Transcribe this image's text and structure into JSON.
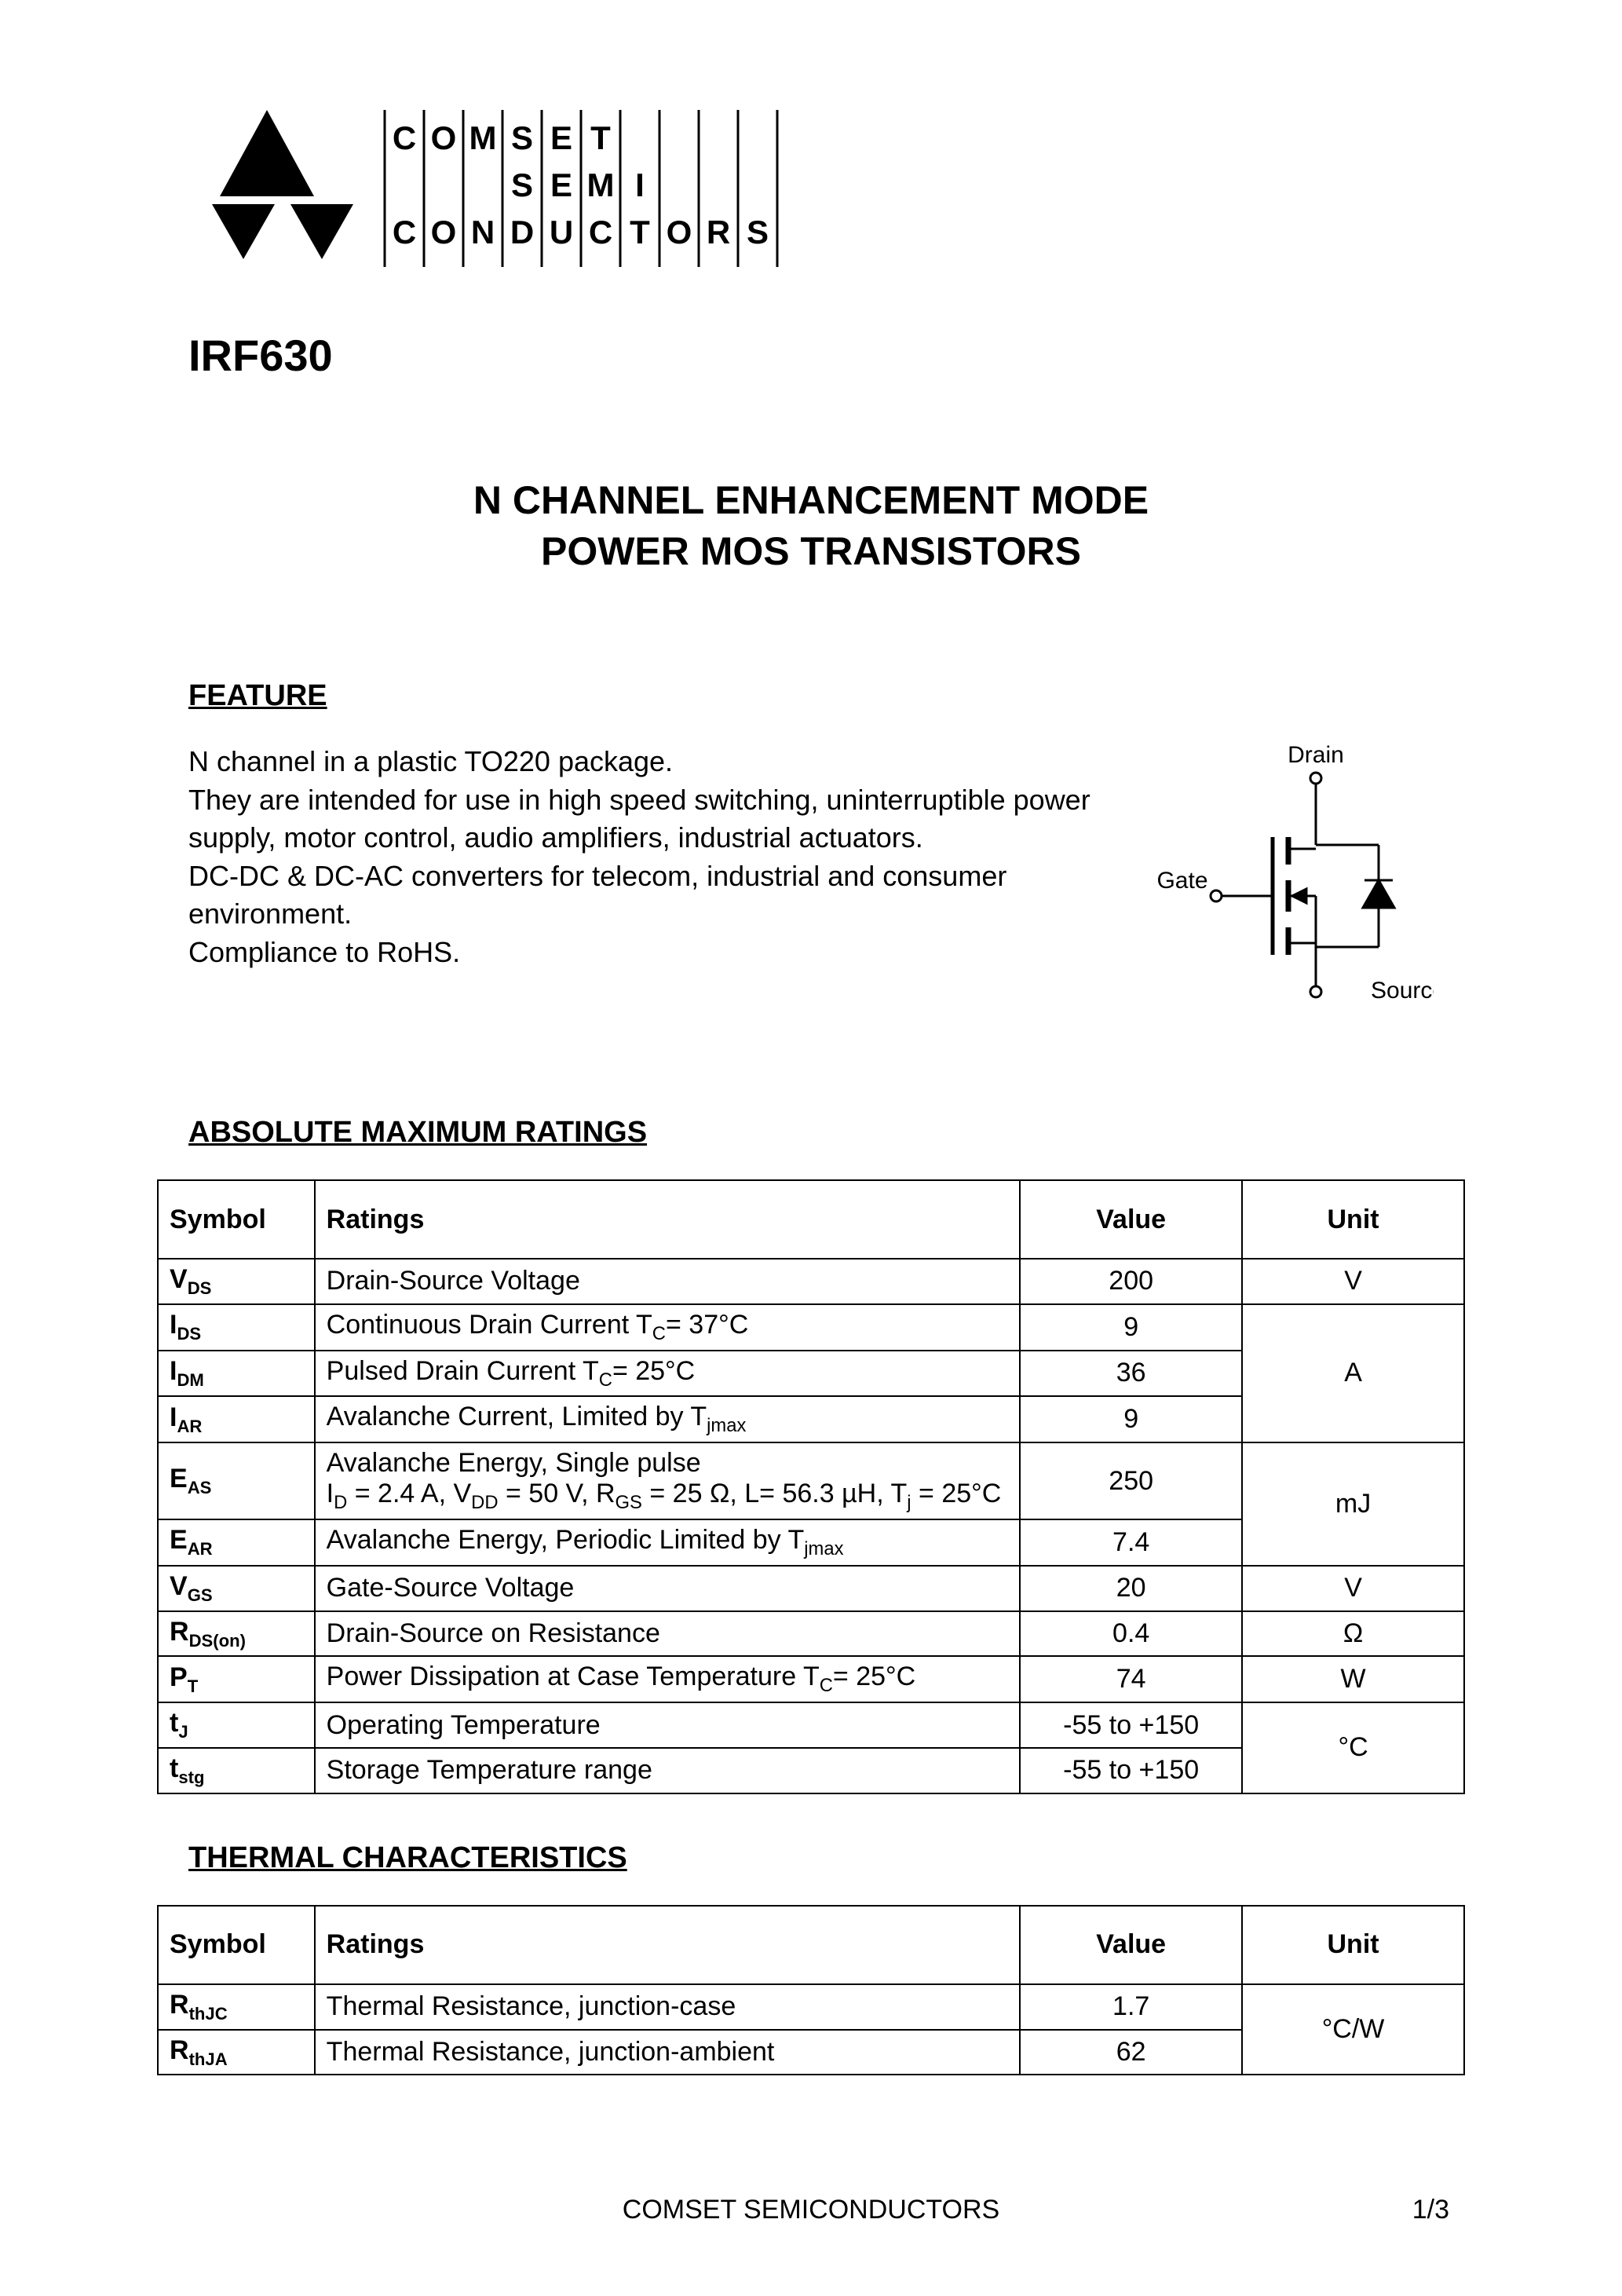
{
  "company": "COMSET SEMICONDUCTORS",
  "part_number": "IRF630",
  "title_line1": "N CHANNEL ENHANCEMENT  MODE",
  "title_line2": "POWER MOS TRANSISTORS",
  "sections": {
    "feature": "FEATURE",
    "abs_max": "ABSOLUTE MAXIMUM RATINGS",
    "thermal": "THERMAL CHARACTERISTICS"
  },
  "feature_text": "N channel in a plastic  TO220 package.\nThey are intended for use in high speed switching, uninterruptible power supply, motor control, audio amplifiers, industrial actuators.\nDC-DC & DC-AC converters for telecom, industrial and consumer environment.\nCompliance to RoHS.",
  "diagram_labels": {
    "drain": "Drain",
    "gate": "Gate",
    "source": "Source"
  },
  "table_headers": {
    "symbol": "Symbol",
    "ratings": "Ratings",
    "value": "Value",
    "unit": "Unit"
  },
  "abs_max_table": {
    "rows": [
      {
        "symbol_main": "V",
        "symbol_sub": "DS",
        "rating": "Drain-Source Voltage",
        "value": "200",
        "unit": "V",
        "unit_rowspan": 1
      },
      {
        "symbol_main": "I",
        "symbol_sub": "DS",
        "rating": "Continuous Drain Current T_C= 37°C",
        "value": "9",
        "unit": "A",
        "unit_rowspan": 3
      },
      {
        "symbol_main": "I",
        "symbol_sub": "DM",
        "rating": "Pulsed Drain Current T_C= 25°C",
        "value": "36"
      },
      {
        "symbol_main": "I",
        "symbol_sub": "AR",
        "rating": "Avalanche Current, Limited by T_jmax",
        "value": "9"
      },
      {
        "symbol_main": "E",
        "symbol_sub": "AS",
        "rating": "Avalanche Energy, Single pulse\nI_D = 2.4 A, V_DD = 50 V, R_GS = 25 Ω, L= 56.3 µH, T_j = 25°C",
        "value": "250",
        "unit": "mJ",
        "unit_rowspan": 2
      },
      {
        "symbol_main": "E",
        "symbol_sub": "AR",
        "rating": "Avalanche Energy, Periodic Limited by T_jmax",
        "value": "7.4"
      },
      {
        "symbol_main": "V",
        "symbol_sub": "GS",
        "rating": "Gate-Source Voltage",
        "value": "20",
        "unit": "V",
        "unit_rowspan": 1
      },
      {
        "symbol_main": "R",
        "symbol_sub": "DS(on)",
        "rating": "Drain-Source on Resistance",
        "value": "0.4",
        "unit": "Ω",
        "unit_rowspan": 1
      },
      {
        "symbol_main": "P",
        "symbol_sub": "T",
        "rating": "Power Dissipation at Case Temperature T_C= 25°C",
        "value": "74",
        "unit": "W",
        "unit_rowspan": 1
      },
      {
        "symbol_main": "t",
        "symbol_sub": "J",
        "rating": "Operating Temperature",
        "value": "-55 to +150",
        "unit": "°C",
        "unit_rowspan": 2
      },
      {
        "symbol_main": "t",
        "symbol_sub": "stg",
        "rating": "Storage Temperature range",
        "value": "-55 to +150"
      }
    ]
  },
  "thermal_table": {
    "rows": [
      {
        "symbol_main": "R",
        "symbol_sub": "thJC",
        "rating": "Thermal Resistance, junction-case",
        "value": "1.7",
        "unit": "°C/W",
        "unit_rowspan": 2
      },
      {
        "symbol_main": "R",
        "symbol_sub": "thJA",
        "rating": "Thermal Resistance, junction-ambient",
        "value": "62"
      }
    ]
  },
  "footer": {
    "company": "COMSET SEMICONDUCTORS",
    "page": "1/3"
  },
  "styling": {
    "background_color": "#ffffff",
    "text_color": "#000000",
    "border_color": "#000000",
    "font_family": "Arial",
    "title_fontsize": 50,
    "body_fontsize": 36,
    "table_fontsize": 34
  }
}
